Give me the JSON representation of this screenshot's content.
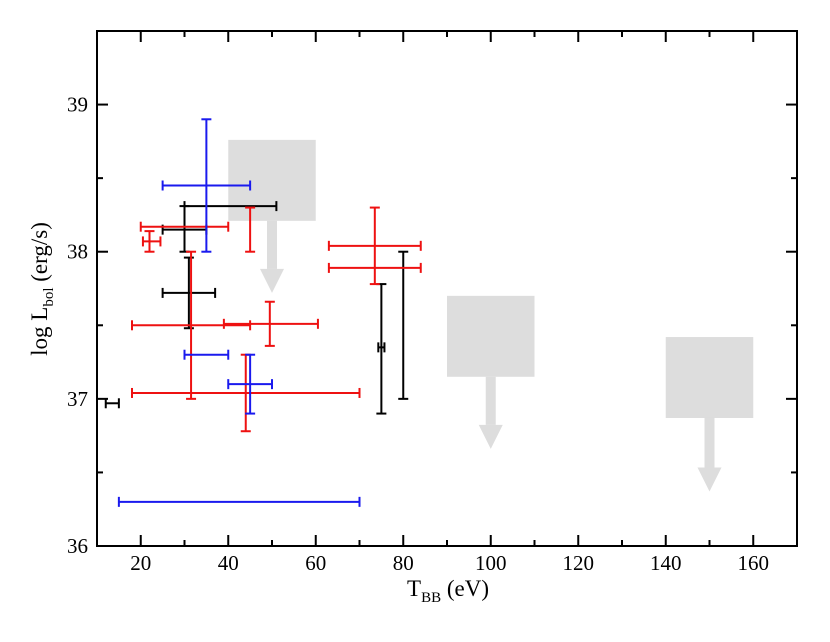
{
  "chart_data": {
    "type": "scatter",
    "title": "",
    "xlabel": {
      "main": "T",
      "sub": "BB",
      "rest": " (eV)"
    },
    "ylabel": {
      "main": "log L",
      "sub": "bol",
      "rest": " (erg/s)"
    },
    "xlim": [
      10,
      170
    ],
    "ylim": [
      36,
      39.5
    ],
    "xticks": [
      "20",
      "40",
      "60",
      "80",
      "100",
      "120",
      "140",
      "160"
    ],
    "xtick_values": [
      20,
      40,
      60,
      80,
      100,
      120,
      140,
      160
    ],
    "xminor": [
      10,
      30,
      50,
      70,
      90,
      110,
      130,
      150,
      170
    ],
    "yticks": [
      "36",
      "37",
      "38",
      "39"
    ],
    "ytick_values": [
      36,
      37,
      38,
      39
    ],
    "yminor": [
      36.5,
      37.5,
      38.5,
      39.5
    ],
    "grid": false,
    "colors": {
      "black": "#000000",
      "red": "#ee1111",
      "blue": "#1a1aee",
      "box": "#dddddd"
    },
    "series": [
      {
        "name": "black",
        "color": "#000000",
        "points": [
          {
            "x": 15,
            "y": 36.97,
            "xlo": 12,
            "xhi": 15
          },
          {
            "x": 30,
            "y": 38.31,
            "xlo": 30,
            "xhi": 51,
            "ylo": 38.0,
            "yhi": 38.31
          },
          {
            "x": 31,
            "y": 38.15,
            "xlo": 25,
            "xhi": 35
          },
          {
            "x": 31,
            "y": 37.72,
            "xlo": 25,
            "xhi": 37,
            "ylo": 37.48,
            "yhi": 37.96
          },
          {
            "x": 75,
            "y": 37.35,
            "xlo": 74.3,
            "xhi": 75.7,
            "ylo": 36.9,
            "yhi": 37.78
          },
          {
            "x": 80,
            "y": 37.5,
            "ylo": 37.0,
            "yhi": 38.0
          }
        ]
      },
      {
        "name": "red",
        "color": "#ee1111",
        "points": [
          {
            "x": 22,
            "y": 38.07,
            "xlo": 20.5,
            "xhi": 24.5,
            "ylo": 38.0,
            "yhi": 38.14
          },
          {
            "x": 30,
            "y": 38.17,
            "xlo": 20,
            "xhi": 40
          },
          {
            "x": 45,
            "y": 38.15,
            "ylo": 38.0,
            "yhi": 38.3
          },
          {
            "x": 31.5,
            "y": 37.5,
            "xlo": 18,
            "xhi": 45,
            "ylo": 37.0,
            "yhi": 38.0
          },
          {
            "x": 49.5,
            "y": 37.51,
            "xlo": 39,
            "xhi": 60.5,
            "ylo": 37.36,
            "yhi": 37.66
          },
          {
            "x": 44,
            "y": 37.04,
            "xlo": 18,
            "xhi": 70,
            "ylo": 36.78,
            "yhi": 37.3
          },
          {
            "x": 73.5,
            "y": 38.04,
            "xlo": 63,
            "xhi": 84,
            "ylo": 37.78,
            "yhi": 38.3
          },
          {
            "x": 73.5,
            "y": 37.89,
            "xlo": 63,
            "xhi": 84
          }
        ]
      },
      {
        "name": "blue",
        "color": "#1a1aee",
        "points": [
          {
            "x": 35,
            "y": 38.45,
            "xlo": 25,
            "xhi": 45,
            "ylo": 38.0,
            "yhi": 38.9
          },
          {
            "x": 35,
            "y": 37.3,
            "xlo": 30,
            "xhi": 40
          },
          {
            "x": 45,
            "y": 37.1,
            "xlo": 40,
            "xhi": 50,
            "ylo": 36.9,
            "yhi": 37.3
          },
          {
            "x": 42.5,
            "y": 36.3,
            "xlo": 15,
            "xhi": 70
          }
        ]
      }
    ],
    "upper_limit_regions": [
      {
        "x0": 40,
        "x1": 60,
        "y0": 38.21,
        "y1": 38.76,
        "arrow_x": 50,
        "arrow_from": 38.21,
        "arrow_to": 37.72
      },
      {
        "x0": 90,
        "x1": 110,
        "y0": 37.15,
        "y1": 37.7,
        "arrow_x": 100,
        "arrow_from": 37.15,
        "arrow_to": 36.66
      },
      {
        "x0": 140,
        "x1": 160,
        "y0": 36.87,
        "y1": 37.42,
        "arrow_x": 150,
        "arrow_from": 36.87,
        "arrow_to": 36.37
      }
    ]
  }
}
